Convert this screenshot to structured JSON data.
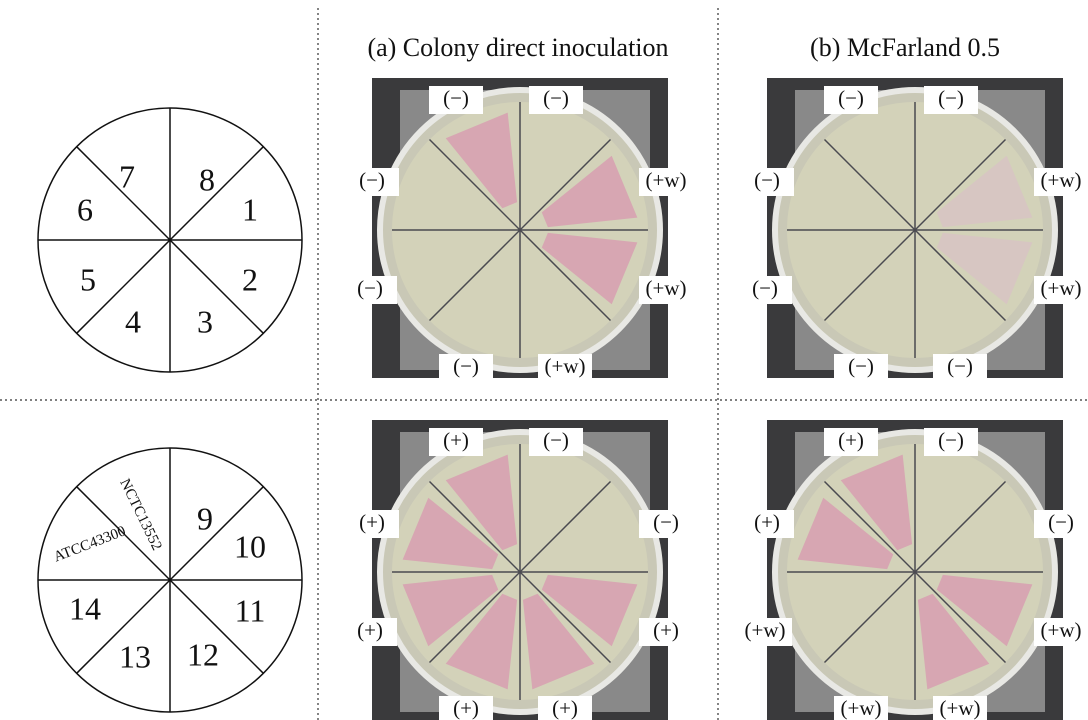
{
  "header": {
    "col_a": "(a) Colony direct inoculation",
    "col_b": "(b) McFarland 0.5"
  },
  "diagram_top": {
    "numbers": [
      "8",
      "1",
      "2",
      "3",
      "4",
      "5",
      "6",
      "7"
    ]
  },
  "diagram_bottom": {
    "numbers": [
      "9",
      "10",
      "11",
      "12",
      "13",
      "14"
    ],
    "strains": [
      "NCTC13552",
      "ATCC43300"
    ]
  },
  "plates": [
    {
      "labels": [
        "(−)",
        "(−)",
        "(+w)",
        "(+w)",
        "(+w)",
        "(−)",
        "(−)",
        "(−)"
      ]
    },
    {
      "labels": [
        "(−)",
        "(−)",
        "(+w)",
        "(+w)",
        "(−)",
        "(−)",
        "(−)",
        "(−)"
      ]
    },
    {
      "labels": [
        "(+)",
        "(−)",
        "(−)",
        "(+)",
        "(+)",
        "(+)",
        "(+)",
        "(+)"
      ]
    },
    {
      "labels": [
        "(+)",
        "(−)",
        "(−)",
        "(+w)",
        "(+w)",
        "(+w)",
        "(+w)",
        "(+)"
      ]
    }
  ]
}
